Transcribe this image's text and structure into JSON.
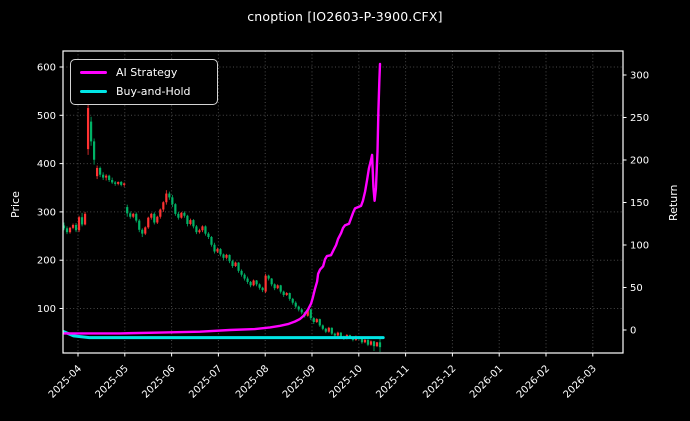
{
  "title": "cnoption [IO2603-P-3900.CFX]",
  "colors": {
    "background": "#000000",
    "text": "#ffffff",
    "grid": "#4a4a4a",
    "spine": "#ffffff",
    "candle_up": "#ff3232",
    "candle_down": "#00b266",
    "ai_strategy": "#ff00ff",
    "buy_and_hold": "#00e5e5"
  },
  "chart_data": {
    "type": "candlestick+line",
    "title": "cnoption [IO2603-P-3900.CFX]",
    "left_axis": {
      "label": "Price",
      "ticks": [
        100,
        200,
        300,
        400,
        500,
        600
      ]
    },
    "right_axis": {
      "label": "Return",
      "ticks": [
        0,
        50,
        100,
        150,
        200,
        250,
        300
      ]
    },
    "x_axis": {
      "labels": [
        "2025-04",
        "2025-05",
        "2025-06",
        "2025-07",
        "2025-08",
        "2025-09",
        "2025-10",
        "2025-11",
        "2025-12",
        "2026-01",
        "2026-02",
        "2026-03"
      ]
    },
    "grid": "dotted",
    "legend_position": "upper-left",
    "candles": {
      "note": "OHLC, red=up green=down (CN convention), evenly spaced 2025-03-26..2025-10-24",
      "ohlc": [
        [
          272,
          278,
          262,
          266
        ],
        [
          266,
          270,
          254,
          258
        ],
        [
          258,
          269,
          255,
          267
        ],
        [
          267,
          276,
          264,
          273
        ],
        [
          273,
          277,
          258,
          262
        ],
        [
          262,
          292,
          258,
          289
        ],
        [
          289,
          298,
          270,
          274
        ],
        [
          274,
          300,
          272,
          296
        ],
        [
          430,
          560,
          418,
          515
        ],
        [
          487,
          497,
          437,
          446
        ],
        [
          446,
          452,
          398,
          408
        ],
        [
          374,
          396,
          368,
          391
        ],
        [
          391,
          394,
          372,
          377
        ],
        [
          377,
          382,
          366,
          371
        ],
        [
          371,
          378,
          365,
          375
        ],
        [
          375,
          377,
          362,
          366
        ],
        [
          366,
          371,
          358,
          361
        ],
        [
          361,
          364,
          354,
          358
        ],
        [
          358,
          363,
          355,
          362
        ],
        [
          362,
          364,
          353,
          356
        ],
        [
          356,
          361,
          352,
          359
        ],
        [
          310,
          315,
          290,
          297
        ],
        [
          297,
          301,
          286,
          290
        ],
        [
          290,
          298,
          287,
          296
        ],
        [
          296,
          299,
          278,
          282
        ],
        [
          282,
          285,
          258,
          263
        ],
        [
          263,
          266,
          248,
          255
        ],
        [
          255,
          270,
          252,
          268
        ],
        [
          268,
          290,
          265,
          288
        ],
        [
          288,
          298,
          284,
          296
        ],
        [
          296,
          299,
          274,
          278
        ],
        [
          278,
          292,
          275,
          290
        ],
        [
          290,
          307,
          286,
          305
        ],
        [
          305,
          322,
          300,
          320
        ],
        [
          320,
          345,
          315,
          338
        ],
        [
          338,
          342,
          325,
          330
        ],
        [
          330,
          335,
          310,
          316
        ],
        [
          316,
          318,
          292,
          296
        ],
        [
          296,
          300,
          284,
          288
        ],
        [
          288,
          300,
          286,
          298
        ],
        [
          298,
          301,
          288,
          292
        ],
        [
          292,
          294,
          270,
          275
        ],
        [
          275,
          286,
          272,
          283
        ],
        [
          283,
          285,
          266,
          270
        ],
        [
          270,
          273,
          254,
          258
        ],
        [
          258,
          265,
          255,
          262
        ],
        [
          262,
          272,
          258,
          270
        ],
        [
          270,
          272,
          251,
          255
        ],
        [
          255,
          258,
          244,
          248
        ],
        [
          248,
          250,
          228,
          232
        ],
        [
          232,
          236,
          214,
          218
        ],
        [
          218,
          226,
          215,
          223
        ],
        [
          223,
          225,
          208,
          212
        ],
        [
          212,
          214,
          200,
          205
        ],
        [
          205,
          213,
          202,
          211
        ],
        [
          211,
          212,
          194,
          198
        ],
        [
          198,
          201,
          184,
          188
        ],
        [
          188,
          197,
          186,
          195
        ],
        [
          195,
          196,
          174,
          178
        ],
        [
          178,
          181,
          166,
          170
        ],
        [
          170,
          173,
          158,
          162
        ],
        [
          162,
          166,
          151,
          155
        ],
        [
          155,
          157,
          144,
          148
        ],
        [
          148,
          160,
          146,
          158
        ],
        [
          158,
          159,
          146,
          150
        ],
        [
          150,
          152,
          139,
          143
        ],
        [
          143,
          145,
          134,
          138
        ],
        [
          135,
          172,
          132,
          168
        ],
        [
          168,
          170,
          158,
          162
        ],
        [
          162,
          163,
          146,
          150
        ],
        [
          150,
          152,
          138,
          142
        ],
        [
          142,
          150,
          140,
          148
        ],
        [
          148,
          149,
          131,
          135
        ],
        [
          135,
          137,
          124,
          128
        ],
        [
          128,
          134,
          126,
          132
        ],
        [
          132,
          133,
          116,
          120
        ],
        [
          120,
          122,
          108,
          112
        ],
        [
          112,
          115,
          100,
          104
        ],
        [
          104,
          106,
          94,
          98
        ],
        [
          98,
          100,
          88,
          92
        ],
        [
          92,
          93,
          81,
          85
        ],
        [
          85,
          100,
          83,
          98
        ],
        [
          98,
          99,
          76,
          80
        ],
        [
          80,
          82,
          68,
          72
        ],
        [
          72,
          80,
          70,
          78
        ],
        [
          78,
          79,
          62,
          65
        ],
        [
          65,
          67,
          55,
          58
        ],
        [
          58,
          60,
          49,
          52
        ],
        [
          52,
          62,
          50,
          60
        ],
        [
          60,
          61,
          45,
          48
        ],
        [
          48,
          50,
          41,
          44
        ],
        [
          44,
          52,
          42,
          50
        ],
        [
          50,
          51,
          39,
          42
        ],
        [
          42,
          44,
          35,
          38
        ],
        [
          38,
          47,
          36,
          45
        ],
        [
          45,
          46,
          37,
          40
        ],
        [
          40,
          41,
          32,
          35
        ],
        [
          35,
          44,
          33,
          42
        ],
        [
          42,
          43,
          35,
          38
        ],
        [
          38,
          39,
          27,
          30
        ],
        [
          30,
          37,
          28,
          35
        ],
        [
          35,
          36,
          22,
          25
        ],
        [
          25,
          34,
          23,
          32
        ],
        [
          32,
          33,
          12,
          22
        ],
        [
          22,
          31,
          20,
          30
        ],
        [
          30,
          38,
          10,
          20
        ]
      ]
    },
    "series": [
      {
        "name": "AI Strategy",
        "color": "#ff00ff",
        "axis": "right",
        "points": [
          [
            0,
            -4
          ],
          [
            0.177,
            -4
          ],
          [
            0.304,
            -3
          ],
          [
            0.43,
            -2
          ],
          [
            0.525,
            0
          ],
          [
            0.604,
            1
          ],
          [
            0.652,
            3
          ],
          [
            0.684,
            5
          ],
          [
            0.709,
            7
          ],
          [
            0.731,
            10
          ],
          [
            0.747,
            13
          ],
          [
            0.759,
            17
          ],
          [
            0.772,
            24
          ],
          [
            0.782,
            31
          ],
          [
            0.788,
            39
          ],
          [
            0.794,
            48
          ],
          [
            0.801,
            57
          ],
          [
            0.804,
            66
          ],
          [
            0.81,
            71
          ],
          [
            0.82,
            75
          ],
          [
            0.826,
            83
          ],
          [
            0.832,
            87
          ],
          [
            0.845,
            88
          ],
          [
            0.854,
            95
          ],
          [
            0.861,
            100
          ],
          [
            0.867,
            107
          ],
          [
            0.877,
            114
          ],
          [
            0.883,
            120
          ],
          [
            0.889,
            123
          ],
          [
            0.902,
            125
          ],
          [
            0.908,
            131
          ],
          [
            0.915,
            138
          ],
          [
            0.921,
            143
          ],
          [
            0.94,
            146
          ],
          [
            0.946,
            152
          ],
          [
            0.953,
            163
          ],
          [
            0.959,
            176
          ],
          [
            0.965,
            190
          ],
          [
            0.972,
            201
          ],
          [
            0.975,
            206
          ],
          [
            0.979,
            168
          ],
          [
            0.983,
            152
          ],
          [
            0.987,
            166
          ],
          [
            0.992,
            210
          ],
          [
            0.995,
            258
          ],
          [
            0.998,
            295
          ],
          [
            1.0,
            313
          ]
        ]
      },
      {
        "name": "Buy-and-Hold",
        "color": "#00e5e5",
        "axis": "right",
        "points": [
          [
            0,
            -2
          ],
          [
            0.03,
            -7
          ],
          [
            0.08,
            -9
          ],
          [
            0.5,
            -9
          ],
          [
            1.01,
            -9
          ]
        ]
      }
    ]
  }
}
